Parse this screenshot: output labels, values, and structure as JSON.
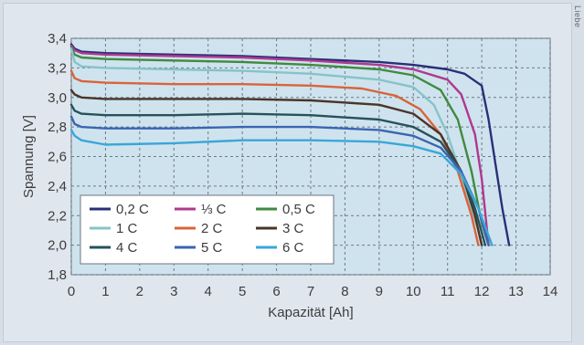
{
  "side_caption": "Liebe",
  "chart_data": {
    "type": "line",
    "title": "",
    "xlabel": "Kapazität [Ah]",
    "ylabel": "Spannung [V]",
    "xlim": [
      0,
      14
    ],
    "ylim": [
      1.8,
      3.4
    ],
    "xticks": [
      "0",
      "1",
      "2",
      "3",
      "4",
      "5",
      "6",
      "7",
      "8",
      "9",
      "10",
      "11",
      "12",
      "13",
      "14"
    ],
    "yticks": [
      "1,8",
      "2,0",
      "2,2",
      "2,4",
      "2,6",
      "2,8",
      "3,0",
      "3,2",
      "3,4"
    ],
    "grid": true,
    "legend_position": "bottom-left",
    "colors": {
      "plot_bg": "#cfe3ee",
      "grid": "#6c7b86"
    },
    "series": [
      {
        "name": "0,2 C",
        "color": "#2a2f78",
        "points": [
          [
            0,
            3.36
          ],
          [
            0.1,
            3.33
          ],
          [
            0.3,
            3.31
          ],
          [
            1,
            3.3
          ],
          [
            3,
            3.29
          ],
          [
            5,
            3.28
          ],
          [
            7,
            3.26
          ],
          [
            9,
            3.24
          ],
          [
            10,
            3.22
          ],
          [
            11,
            3.19
          ],
          [
            11.5,
            3.16
          ],
          [
            12,
            3.08
          ],
          [
            12.2,
            2.85
          ],
          [
            12.4,
            2.55
          ],
          [
            12.6,
            2.25
          ],
          [
            12.8,
            2.0
          ]
        ]
      },
      {
        "name": "1/3 C",
        "color": "#b0388f",
        "points": [
          [
            0,
            3.35
          ],
          [
            0.1,
            3.32
          ],
          [
            0.3,
            3.3
          ],
          [
            1,
            3.29
          ],
          [
            3,
            3.28
          ],
          [
            5,
            3.27
          ],
          [
            7,
            3.25
          ],
          [
            9,
            3.22
          ],
          [
            10,
            3.19
          ],
          [
            11,
            3.12
          ],
          [
            11.4,
            3.02
          ],
          [
            11.8,
            2.75
          ],
          [
            12.0,
            2.45
          ],
          [
            12.2,
            2.0
          ]
        ]
      },
      {
        "name": "0,5 C",
        "color": "#3f8a3f",
        "points": [
          [
            0,
            3.34
          ],
          [
            0.1,
            3.29
          ],
          [
            0.3,
            3.27
          ],
          [
            1,
            3.26
          ],
          [
            3,
            3.25
          ],
          [
            5,
            3.24
          ],
          [
            7,
            3.22
          ],
          [
            9,
            3.19
          ],
          [
            10,
            3.15
          ],
          [
            10.8,
            3.05
          ],
          [
            11.3,
            2.85
          ],
          [
            11.7,
            2.5
          ],
          [
            12.0,
            2.15
          ],
          [
            12.2,
            2.0
          ]
        ]
      },
      {
        "name": "1 C",
        "color": "#86c3c7",
        "points": [
          [
            0,
            3.33
          ],
          [
            0.1,
            3.24
          ],
          [
            0.3,
            3.21
          ],
          [
            1,
            3.2
          ],
          [
            3,
            3.19
          ],
          [
            5,
            3.18
          ],
          [
            7,
            3.16
          ],
          [
            9,
            3.12
          ],
          [
            10,
            3.07
          ],
          [
            10.6,
            2.95
          ],
          [
            11.0,
            2.75
          ],
          [
            11.5,
            2.4
          ],
          [
            11.9,
            2.1
          ],
          [
            12.0,
            2.0
          ]
        ]
      },
      {
        "name": "2 C",
        "color": "#d9643a",
        "points": [
          [
            0,
            3.18
          ],
          [
            0.1,
            3.13
          ],
          [
            0.3,
            3.11
          ],
          [
            1,
            3.1
          ],
          [
            3,
            3.09
          ],
          [
            5,
            3.09
          ],
          [
            7,
            3.08
          ],
          [
            8.5,
            3.06
          ],
          [
            9.5,
            3.01
          ],
          [
            10.2,
            2.92
          ],
          [
            10.8,
            2.75
          ],
          [
            11.3,
            2.5
          ],
          [
            11.7,
            2.2
          ],
          [
            11.9,
            2.0
          ]
        ]
      },
      {
        "name": "3 C",
        "color": "#4a352a",
        "points": [
          [
            0,
            3.05
          ],
          [
            0.1,
            3.02
          ],
          [
            0.3,
            3.0
          ],
          [
            1,
            2.99
          ],
          [
            3,
            2.99
          ],
          [
            5,
            2.99
          ],
          [
            7,
            2.98
          ],
          [
            9,
            2.95
          ],
          [
            10,
            2.89
          ],
          [
            10.8,
            2.75
          ],
          [
            11.4,
            2.5
          ],
          [
            11.8,
            2.2
          ],
          [
            12.0,
            2.0
          ]
        ]
      },
      {
        "name": "4 C",
        "color": "#26525a",
        "points": [
          [
            0,
            2.95
          ],
          [
            0.1,
            2.91
          ],
          [
            0.3,
            2.89
          ],
          [
            1,
            2.88
          ],
          [
            3,
            2.88
          ],
          [
            5,
            2.89
          ],
          [
            7,
            2.88
          ],
          [
            9,
            2.85
          ],
          [
            10,
            2.8
          ],
          [
            10.8,
            2.7
          ],
          [
            11.4,
            2.5
          ],
          [
            11.8,
            2.25
          ],
          [
            12.1,
            2.0
          ]
        ]
      },
      {
        "name": "5 C",
        "color": "#3b65b2",
        "points": [
          [
            0,
            2.87
          ],
          [
            0.1,
            2.82
          ],
          [
            0.3,
            2.8
          ],
          [
            1,
            2.79
          ],
          [
            3,
            2.79
          ],
          [
            5,
            2.8
          ],
          [
            7,
            2.8
          ],
          [
            9,
            2.78
          ],
          [
            10,
            2.74
          ],
          [
            10.8,
            2.66
          ],
          [
            11.4,
            2.5
          ],
          [
            11.9,
            2.25
          ],
          [
            12.2,
            2.0
          ]
        ]
      },
      {
        "name": "6 C",
        "color": "#3aa6d8",
        "points": [
          [
            0,
            2.78
          ],
          [
            0.1,
            2.74
          ],
          [
            0.3,
            2.71
          ],
          [
            1,
            2.68
          ],
          [
            3,
            2.69
          ],
          [
            5,
            2.71
          ],
          [
            7,
            2.71
          ],
          [
            9,
            2.7
          ],
          [
            10,
            2.67
          ],
          [
            10.8,
            2.62
          ],
          [
            11.4,
            2.48
          ],
          [
            11.9,
            2.25
          ],
          [
            12.3,
            2.0
          ]
        ]
      }
    ],
    "legend_labels": [
      "0,2 C",
      "⅓ C",
      "0,5 C",
      "1 C",
      "2 C",
      "3 C",
      "4 C",
      "5 C",
      "6 C"
    ]
  }
}
